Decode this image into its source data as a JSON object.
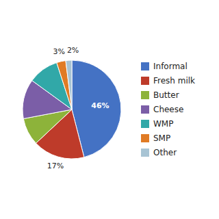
{
  "chart_data": {
    "type": "pie",
    "categories": [
      "Informal",
      "Fresh milk",
      "Butter",
      "Cheese",
      "WMP",
      "SMP",
      "Other"
    ],
    "values": [
      46,
      17,
      9,
      13,
      10,
      3,
      2
    ],
    "colors": [
      "#4472C4",
      "#BE3B2A",
      "#8DB33A",
      "#7B5EA7",
      "#31A8A8",
      "#E07B25",
      "#A8C4D4"
    ],
    "data_labels": true,
    "value_labels": [
      "46%",
      "17%",
      null,
      null,
      null,
      "3%",
      "2%"
    ],
    "legend": "right"
  }
}
